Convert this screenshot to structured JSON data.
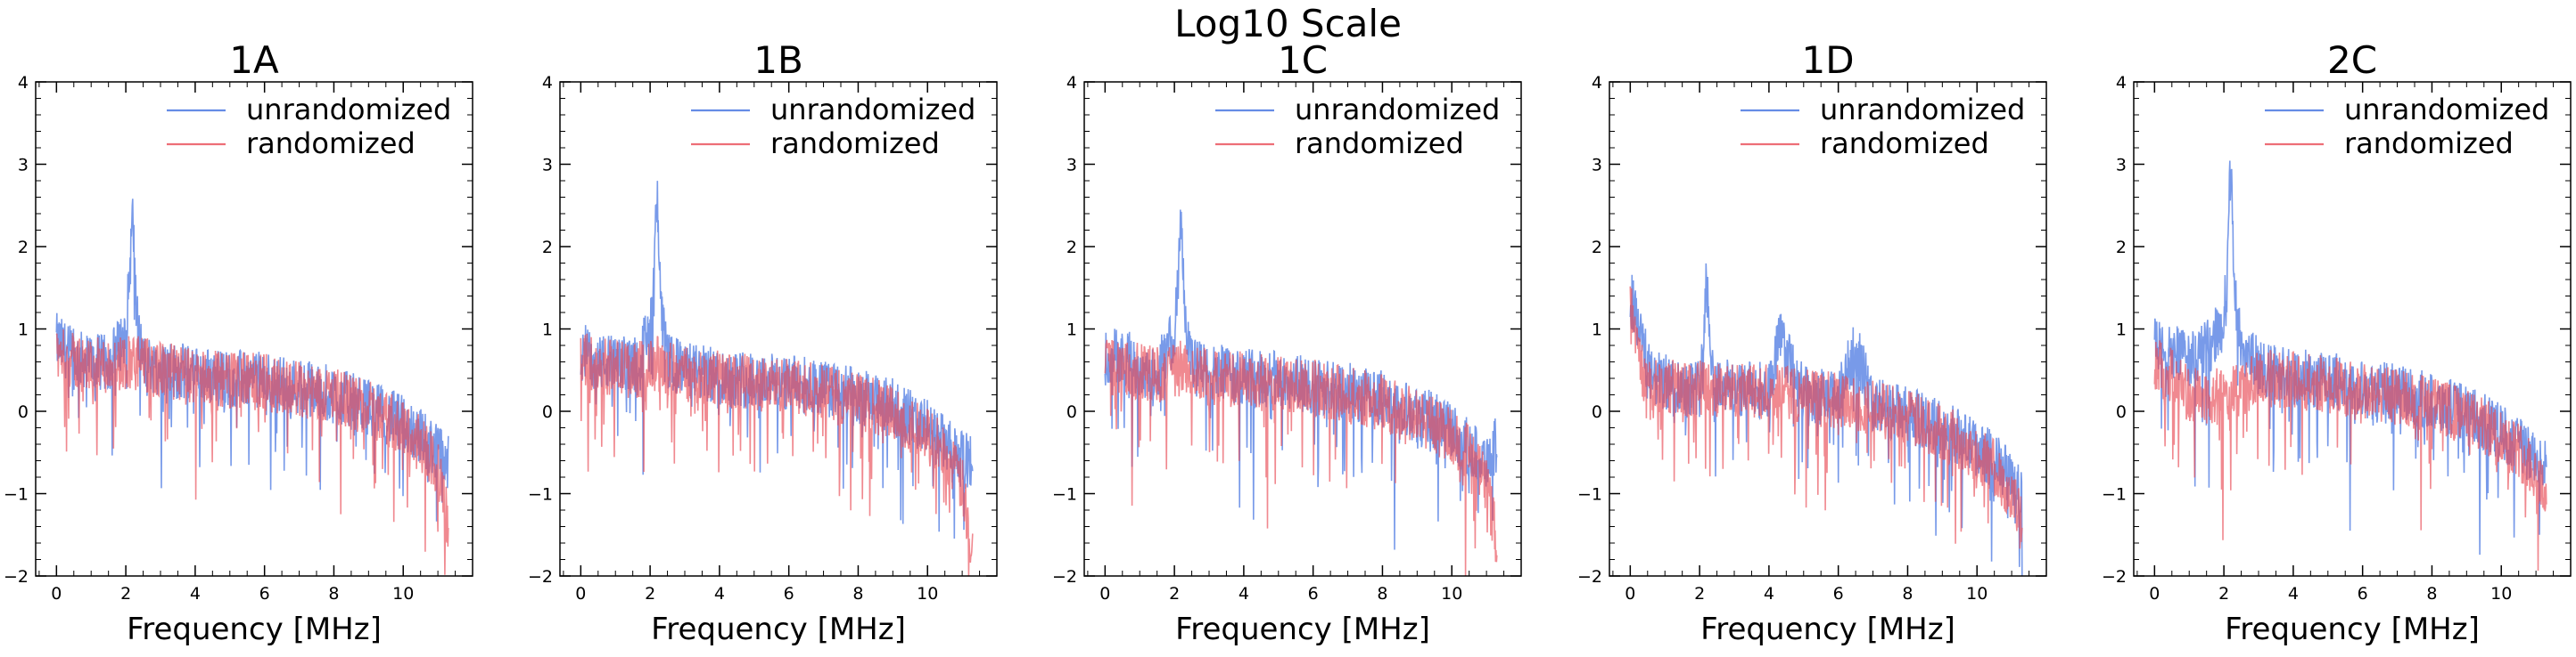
{
  "figure": {
    "suptitle": "Log10 Scale"
  },
  "colors": {
    "unrandomized": "#3f6fe0",
    "randomized": "#e84a55",
    "axis": "#000000",
    "background": "#ffffff"
  },
  "chart_data": [
    {
      "type": "line",
      "title": "1A",
      "xlabel": "Frequency [MHz]",
      "ylabel": "",
      "xlim": [
        -0.6,
        12.0
      ],
      "ylim": [
        -2,
        4
      ],
      "xticks": [
        0,
        2,
        4,
        6,
        8,
        10
      ],
      "yticks": [
        -2,
        -1,
        0,
        1,
        2,
        3,
        4
      ],
      "legend_position": "top-right",
      "series": [
        {
          "name": "unrandomized",
          "x": [
            0,
            0.5,
            1,
            1.5,
            2,
            2.1,
            2.2,
            2.3,
            2.5,
            3,
            4,
            5,
            6,
            7,
            8,
            9,
            10,
            10.5,
            11,
            11.3
          ],
          "y": [
            0.85,
            0.65,
            0.6,
            0.58,
            0.95,
            1.6,
            2.4,
            1.2,
            0.6,
            0.52,
            0.45,
            0.4,
            0.38,
            0.3,
            0.2,
            0.05,
            -0.15,
            -0.3,
            -0.5,
            -0.65
          ]
        },
        {
          "name": "randomized",
          "x": [
            0,
            0.5,
            1,
            1.5,
            2,
            2.1,
            2.2,
            2.3,
            2.5,
            3,
            4,
            5,
            6,
            7,
            8,
            9,
            10,
            10.5,
            11,
            11.3
          ],
          "y": [
            0.7,
            0.6,
            0.55,
            0.55,
            0.6,
            0.62,
            0.65,
            0.6,
            0.55,
            0.5,
            0.42,
            0.38,
            0.35,
            0.28,
            0.18,
            0.05,
            -0.2,
            -0.4,
            -0.7,
            -1.4
          ]
        }
      ]
    },
    {
      "type": "line",
      "title": "1B",
      "xlabel": "Frequency [MHz]",
      "ylabel": "",
      "xlim": [
        -0.6,
        12.0
      ],
      "ylim": [
        -2,
        4
      ],
      "xticks": [
        0,
        2,
        4,
        6,
        8,
        10
      ],
      "yticks": [
        -2,
        -1,
        0,
        1,
        2,
        3,
        4
      ],
      "legend_position": "top-right",
      "series": [
        {
          "name": "unrandomized",
          "x": [
            0,
            0.5,
            1,
            1.5,
            2,
            2.1,
            2.2,
            2.3,
            2.5,
            3,
            4,
            5,
            6,
            7,
            8,
            9,
            10,
            10.5,
            11,
            11.3
          ],
          "y": [
            0.75,
            0.6,
            0.58,
            0.55,
            0.95,
            1.6,
            2.6,
            1.3,
            0.6,
            0.5,
            0.42,
            0.4,
            0.35,
            0.28,
            0.18,
            0.05,
            -0.2,
            -0.4,
            -0.6,
            -0.6
          ]
        },
        {
          "name": "randomized",
          "x": [
            0,
            0.5,
            1,
            1.5,
            2,
            2.1,
            2.2,
            2.3,
            2.5,
            3,
            4,
            5,
            6,
            7,
            8,
            9,
            10,
            10.5,
            11,
            11.3
          ],
          "y": [
            0.65,
            0.55,
            0.52,
            0.5,
            0.52,
            0.55,
            0.6,
            0.55,
            0.5,
            0.45,
            0.4,
            0.35,
            0.3,
            0.22,
            0.12,
            -0.02,
            -0.3,
            -0.5,
            -0.9,
            -1.8
          ]
        }
      ]
    },
    {
      "type": "line",
      "title": "1C",
      "xlabel": "Frequency [MHz]",
      "ylabel": "",
      "xlim": [
        -0.6,
        12.0
      ],
      "ylim": [
        -2,
        4
      ],
      "xticks": [
        0,
        2,
        4,
        6,
        8,
        10
      ],
      "yticks": [
        -2,
        -1,
        0,
        1,
        2,
        3,
        4
      ],
      "legend_position": "top-right",
      "series": [
        {
          "name": "unrandomized",
          "x": [
            0,
            0.5,
            1,
            1.5,
            2,
            2.1,
            2.2,
            2.3,
            2.5,
            3,
            4,
            5,
            6,
            7,
            8,
            9,
            10,
            10.5,
            11,
            11.3
          ],
          "y": [
            0.65,
            0.7,
            0.5,
            0.5,
            0.9,
            1.6,
            2.55,
            1.2,
            0.55,
            0.48,
            0.42,
            0.38,
            0.32,
            0.25,
            0.15,
            0.0,
            -0.25,
            -0.45,
            -0.6,
            -0.4
          ]
        },
        {
          "name": "randomized",
          "x": [
            0,
            0.5,
            1,
            1.5,
            2,
            2.1,
            2.2,
            2.3,
            2.5,
            3,
            4,
            5,
            6,
            7,
            8,
            9,
            10,
            10.5,
            11,
            11.3
          ],
          "y": [
            0.55,
            0.5,
            0.48,
            0.45,
            0.48,
            0.5,
            0.55,
            0.5,
            0.45,
            0.42,
            0.38,
            0.32,
            0.28,
            0.2,
            0.1,
            -0.05,
            -0.3,
            -0.5,
            -0.9,
            -1.6
          ]
        }
      ]
    },
    {
      "type": "line",
      "title": "1D",
      "xlabel": "Frequency [MHz]",
      "ylabel": "",
      "xlim": [
        -0.6,
        12.0
      ],
      "ylim": [
        -2,
        4
      ],
      "xticks": [
        0,
        2,
        4,
        6,
        8,
        10
      ],
      "yticks": [
        -2,
        -1,
        0,
        1,
        2,
        3,
        4
      ],
      "legend_position": "top-right",
      "series": [
        {
          "name": "unrandomized",
          "x": [
            0,
            0.3,
            0.6,
            1,
            1.5,
            2,
            2.2,
            2.4,
            3,
            4,
            4.3,
            5,
            6,
            6.5,
            7,
            8,
            9,
            10,
            10.5,
            11,
            11.3
          ],
          "y": [
            1.4,
            0.9,
            0.4,
            0.35,
            0.3,
            0.3,
            1.6,
            0.35,
            0.28,
            0.25,
            0.9,
            0.2,
            0.15,
            0.8,
            0.08,
            -0.05,
            -0.2,
            -0.45,
            -0.6,
            -0.8,
            -1.1
          ]
        },
        {
          "name": "randomized",
          "x": [
            0,
            0.3,
            0.6,
            1,
            1.5,
            2,
            2.2,
            2.4,
            3,
            4,
            4.3,
            5,
            6,
            6.5,
            7,
            8,
            9,
            10,
            10.5,
            11,
            11.3
          ],
          "y": [
            1.4,
            0.5,
            0.35,
            0.3,
            0.28,
            0.28,
            0.3,
            0.28,
            0.25,
            0.22,
            0.22,
            0.18,
            0.12,
            0.1,
            0.05,
            -0.08,
            -0.25,
            -0.5,
            -0.7,
            -1.0,
            -1.4
          ]
        }
      ]
    },
    {
      "type": "line",
      "title": "2C",
      "xlabel": "Frequency [MHz]",
      "ylabel": "",
      "xlim": [
        -0.6,
        12.0
      ],
      "ylim": [
        -2,
        4
      ],
      "xticks": [
        0,
        2,
        4,
        6,
        8,
        10
      ],
      "yticks": [
        -2,
        -1,
        0,
        1,
        2,
        3,
        4
      ],
      "legend_position": "top-right",
      "series": [
        {
          "name": "unrandomized",
          "x": [
            0,
            0.5,
            1,
            1.5,
            2,
            2.1,
            2.2,
            2.3,
            2.5,
            3,
            4,
            5,
            6,
            7,
            8,
            9,
            10,
            10.5,
            11,
            11.3
          ],
          "y": [
            0.8,
            0.7,
            0.65,
            0.75,
            1.1,
            1.8,
            3.05,
            1.5,
            0.8,
            0.55,
            0.42,
            0.38,
            0.3,
            0.22,
            0.12,
            -0.02,
            -0.25,
            -0.4,
            -0.6,
            -0.7
          ]
        },
        {
          "name": "randomized",
          "x": [
            0,
            0.5,
            1,
            1.5,
            2,
            2.1,
            2.2,
            2.3,
            2.5,
            3,
            4,
            5,
            6,
            7,
            8,
            9,
            10,
            10.5,
            11,
            11.3
          ],
          "y": [
            0.55,
            0.45,
            0.2,
            0.15,
            0.2,
            0.2,
            0.25,
            0.2,
            0.25,
            0.4,
            0.38,
            0.32,
            0.25,
            0.18,
            0.08,
            -0.08,
            -0.3,
            -0.45,
            -0.75,
            -1.0
          ]
        }
      ]
    }
  ]
}
